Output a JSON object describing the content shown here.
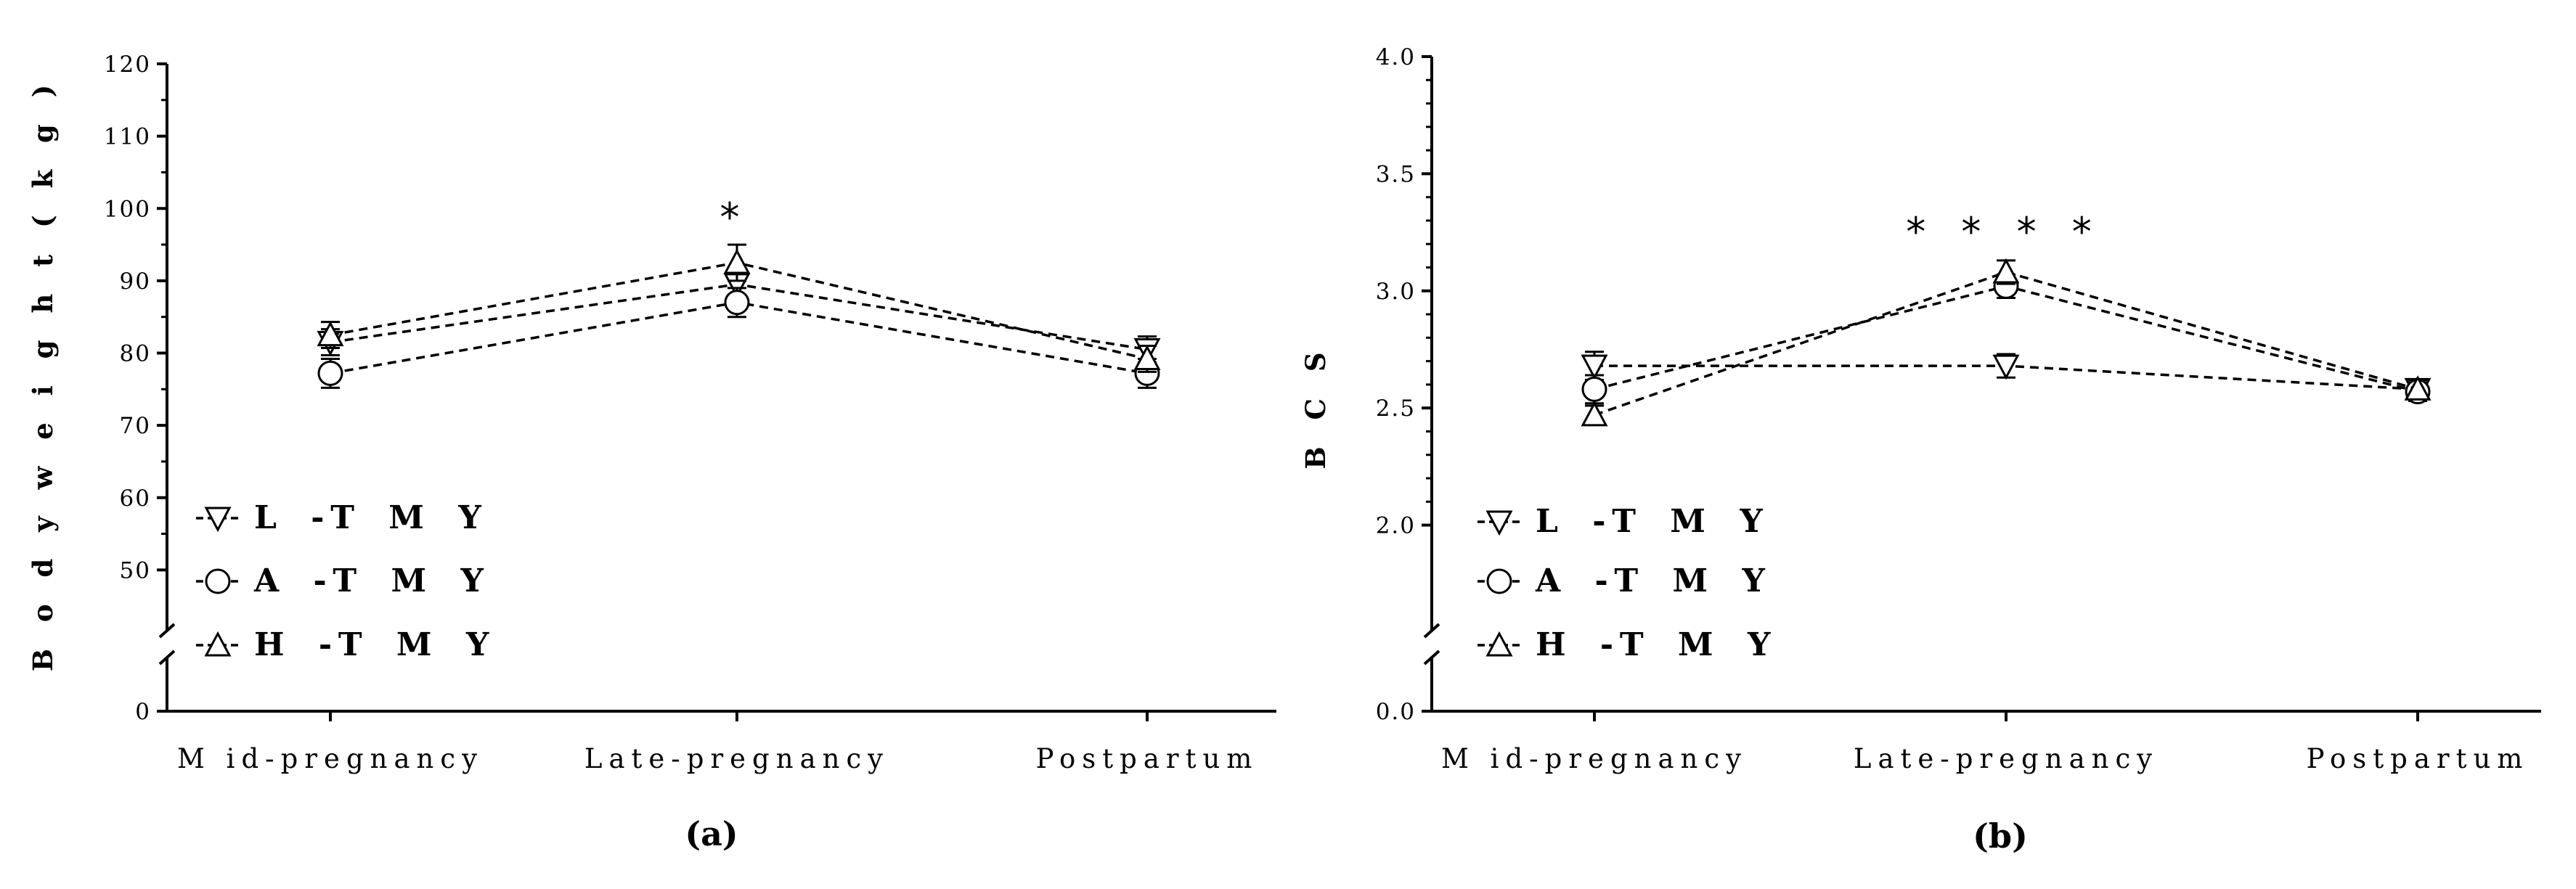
{
  "chart_data": [
    {
      "panel": "(a)",
      "type": "line",
      "categories": [
        "M id-pregnancy",
        "Late-pregnancy",
        "Postpartum"
      ],
      "ylabel": "B o d y w e i g h t ( k g )",
      "y_ticks": [
        0,
        50,
        60,
        70,
        80,
        90,
        100,
        110,
        120
      ],
      "ylim": [
        40,
        120
      ],
      "axis_break": true,
      "grid": false,
      "legend_position": "bottom-left",
      "series": [
        {
          "name": "L -T M Y",
          "marker": "triangle-down",
          "values": [
            81.5,
            89.5,
            80.5
          ],
          "error": [
            1.8,
            1.8,
            1.8
          ]
        },
        {
          "name": "A -T M Y",
          "marker": "circle",
          "values": [
            77.2,
            87.0,
            77.2
          ],
          "error": [
            2.0,
            2.0,
            2.0
          ]
        },
        {
          "name": "H -T M Y",
          "marker": "triangle-up",
          "values": [
            82.5,
            92.5,
            79.2
          ],
          "error": [
            1.8,
            2.5,
            1.8
          ]
        }
      ],
      "annotations": [
        {
          "category": "Late-pregnancy",
          "text": "*"
        }
      ]
    },
    {
      "panel": "(b)",
      "type": "line",
      "categories": [
        "M id-pregnancy",
        "Late-pregnancy",
        "Postpartum"
      ],
      "ylabel": "B C S",
      "y_ticks": [
        0.0,
        2.0,
        2.5,
        3.0,
        3.5,
        4.0
      ],
      "y_tick_labels": [
        "0.0",
        "2.0",
        "2.5",
        "3.0",
        "3.5",
        "4.0"
      ],
      "ylim": [
        1.5,
        4.0
      ],
      "axis_break": true,
      "grid": false,
      "legend_position": "bottom-left",
      "series": [
        {
          "name": "L -T M Y",
          "marker": "triangle-down",
          "values": [
            2.68,
            2.68,
            2.58
          ],
          "error": [
            0.06,
            0.05,
            0.04
          ]
        },
        {
          "name": "A -T M Y",
          "marker": "circle",
          "values": [
            2.58,
            3.02,
            2.57
          ],
          "error": [
            0.06,
            0.05,
            0.04
          ]
        },
        {
          "name": "H -T M Y",
          "marker": "triangle-up",
          "values": [
            2.47,
            3.08,
            2.58
          ],
          "error": [
            0.04,
            0.05,
            0.04
          ]
        }
      ],
      "annotations": [
        {
          "category": "Late-pregnancy",
          "text": "* * * *"
        }
      ]
    }
  ]
}
